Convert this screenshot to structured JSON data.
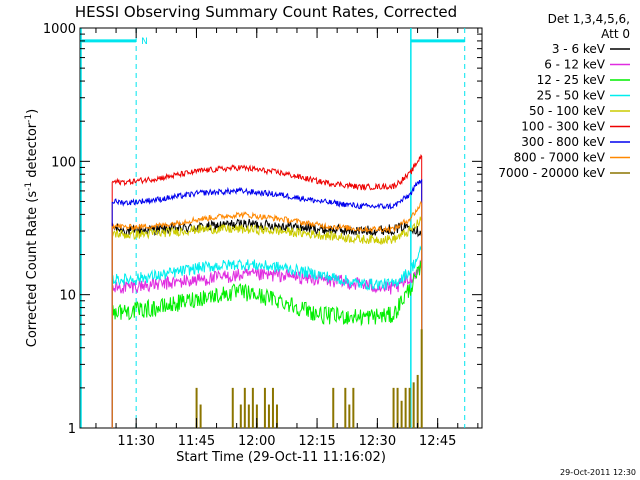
{
  "chart_data": {
    "type": "line",
    "title": "HESSI Observing Summary Count Rates, Corrected",
    "xlabel": "Start Time (29-Oct-11 11:16:02)",
    "ylabel_main": "Corrected Count Rate (s",
    "ylabel_sup1": "-1",
    "ylabel_mid": " detector",
    "ylabel_sup2": "-1",
    "ylabel_end": ")",
    "x_unit": "minutes",
    "xlim": [
      0,
      100
    ],
    "y_scale": "log",
    "ylim": [
      1,
      1000
    ],
    "x_ticks": [
      {
        "label": "11:30",
        "x": 13.97
      },
      {
        "label": "11:45",
        "x": 28.97
      },
      {
        "label": "12:00",
        "x": 43.97
      },
      {
        "label": "12:15",
        "x": 58.97
      },
      {
        "label": "12:30",
        "x": 73.97
      },
      {
        "label": "12:45",
        "x": 88.97
      }
    ],
    "y_ticks": [
      {
        "label": "1",
        "y": 1
      },
      {
        "label": "10",
        "y": 10
      },
      {
        "label": "100",
        "y": 100
      },
      {
        "label": "1000",
        "y": 1000
      }
    ],
    "legend_header_1": "Det 1,3,4,5,6,",
    "legend_header_2": "Att 0",
    "legend_placement": "right",
    "series": [
      {
        "name": "3 - 6 keV",
        "color": "#000000",
        "x": [
          8,
          12,
          20,
          30,
          40,
          50,
          60,
          70,
          78,
          82,
          84,
          85
        ],
        "y": [
          32,
          30,
          31,
          32,
          34,
          33,
          31,
          30,
          31,
          33,
          30,
          30
        ],
        "noise": 0.09
      },
      {
        "name": "6 - 12 keV",
        "color": "#e02ce0",
        "x": [
          8,
          12,
          20,
          30,
          40,
          50,
          60,
          70,
          78,
          82,
          84,
          85
        ],
        "y": [
          11,
          11.5,
          12,
          13,
          14,
          14,
          13,
          12,
          11,
          13,
          15,
          18
        ],
        "noise": 0.12
      },
      {
        "name": "12 - 25 keV",
        "color": "#00ee00",
        "x": [
          8,
          12,
          20,
          30,
          40,
          50,
          60,
          70,
          78,
          80,
          82,
          84,
          85
        ],
        "y": [
          7.5,
          7.5,
          8,
          9.5,
          10.5,
          9,
          7,
          6.8,
          7,
          9,
          11,
          14,
          16
        ],
        "noise": 0.15
      },
      {
        "name": "25 - 50 keV",
        "color": "#00eeee",
        "x": [
          8,
          12,
          20,
          30,
          40,
          50,
          60,
          70,
          78,
          82,
          84,
          85
        ],
        "y": [
          13,
          13,
          14,
          16,
          17,
          16,
          14,
          12,
          12,
          15,
          19,
          22
        ],
        "noise": 0.1
      },
      {
        "name": "50 - 100 keV",
        "color": "#cccc00",
        "x": [
          8,
          12,
          20,
          30,
          40,
          50,
          60,
          70,
          78,
          82,
          84,
          85
        ],
        "y": [
          29,
          28,
          29,
          31,
          31,
          30,
          28,
          26,
          26,
          30,
          34,
          37
        ],
        "noise": 0.08
      },
      {
        "name": "100 - 300 keV",
        "color": "#ee0000",
        "x": [
          8,
          12,
          20,
          30,
          40,
          50,
          60,
          70,
          78,
          82,
          84,
          85
        ],
        "y": [
          70,
          70,
          75,
          85,
          90,
          82,
          70,
          64,
          65,
          80,
          100,
          112
        ],
        "noise": 0.05
      },
      {
        "name": "300 - 800 keV",
        "color": "#0000ee",
        "x": [
          8,
          12,
          20,
          30,
          40,
          50,
          60,
          70,
          78,
          82,
          84,
          85
        ],
        "y": [
          50,
          49,
          52,
          58,
          60,
          56,
          50,
          46,
          46,
          56,
          68,
          75
        ],
        "noise": 0.05
      },
      {
        "name": "800 - 7000 keV",
        "color": "#ff8800",
        "x": [
          8,
          12,
          20,
          30,
          40,
          50,
          60,
          70,
          78,
          82,
          84,
          85
        ],
        "y": [
          33,
          32,
          33,
          37,
          40,
          37,
          33,
          31,
          31,
          37,
          44,
          49
        ],
        "noise": 0.05
      },
      {
        "name": "7000 - 20000 keV",
        "color": "#8b7500",
        "x": [
          29,
          30,
          38,
          40,
          41,
          42,
          43,
          44,
          46,
          47,
          48,
          49,
          63,
          66,
          67,
          68,
          78,
          79,
          80,
          81,
          82,
          83,
          84,
          85
        ],
        "y": [
          2,
          1.5,
          2,
          1.5,
          2,
          1.5,
          2,
          1.5,
          2,
          1.5,
          2,
          1.5,
          2,
          2,
          1.5,
          2,
          2,
          2,
          1.6,
          2,
          2,
          2.2,
          2.5,
          5.5
        ],
        "noise": 0
      }
    ],
    "attenuator_flag": "N",
    "indicator_color": "#00e5ee",
    "indicator_level": 800
  },
  "footer_date": "29-Oct-2011 12:30"
}
